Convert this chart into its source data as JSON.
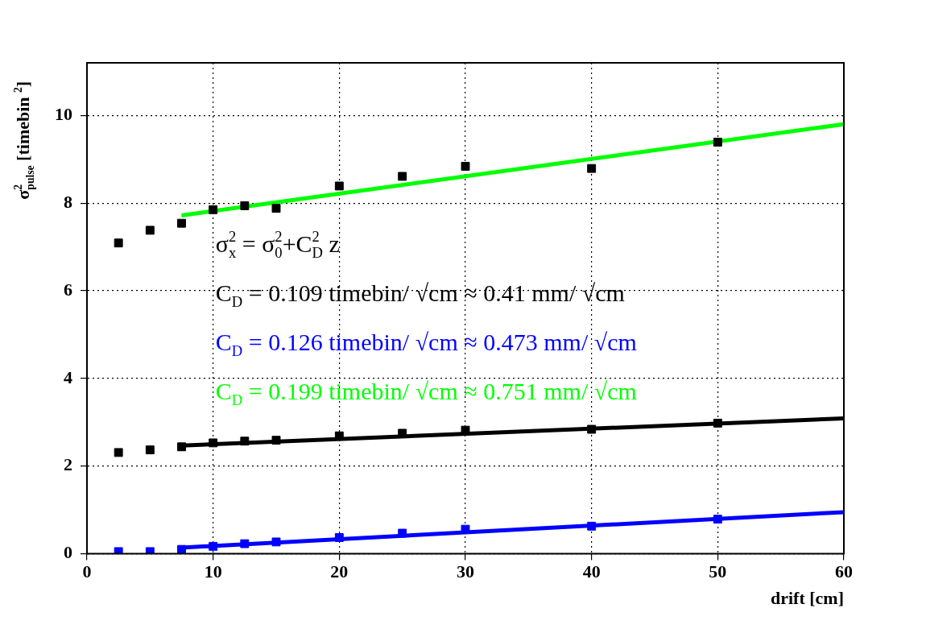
{
  "chart_data": {
    "type": "scatter",
    "xlabel": "drift [cm]",
    "ylabel": "σ$^{2}$$_{pulse}$ [timebin $^{2}$]",
    "xlim": [
      0,
      60
    ],
    "xticks": [
      0,
      10,
      20,
      30,
      40,
      50,
      60
    ],
    "ylim": [
      0,
      11.2
    ],
    "yticks": [
      0,
      2,
      4,
      6,
      8,
      10
    ],
    "grid": true,
    "legend": false,
    "annotations": [
      "σ$^{2}$$_{x}$ = σ$^{2}$$_{0}$+C$^{2}$$_{D}$ z",
      "C$_{D}$ = 0.109 timebin/ √cm ≈ 0.41 mm/ √cm",
      "C$_{D}$ = 0.126 timebin/ √cm ≈ 0.473 mm/ √cm",
      "C$_{D}$ = 0.199 timebin/ √cm ≈ 0.751 mm/ √cm"
    ],
    "series": [
      {
        "type": "scatter",
        "marker": "square",
        "color": "#000000",
        "x": [
          2.5,
          5,
          7.5,
          10,
          12.5,
          15,
          20,
          25,
          30,
          40,
          50
        ],
        "values": [
          7.09,
          7.38,
          7.54,
          7.85,
          7.94,
          7.88,
          8.39,
          8.61,
          8.84,
          8.79,
          9.39
        ]
      },
      {
        "type": "scatter",
        "marker": "square",
        "color": "#000000",
        "x": [
          2.5,
          5,
          7.5,
          10,
          12.5,
          15,
          20,
          25,
          30,
          40,
          50
        ],
        "values": [
          2.31,
          2.37,
          2.44,
          2.53,
          2.57,
          2.59,
          2.69,
          2.75,
          2.82,
          2.84,
          2.98
        ]
      },
      {
        "type": "scatter",
        "marker": "square",
        "color": "#0000ff",
        "x": [
          2.5,
          5,
          7.5,
          10,
          12.5,
          15,
          20,
          25,
          30,
          40,
          50
        ],
        "values": [
          0.05,
          0.05,
          0.1,
          0.17,
          0.23,
          0.27,
          0.37,
          0.47,
          0.56,
          0.63,
          0.79
        ]
      },
      {
        "type": "line",
        "marker": "none",
        "color": "#000000",
        "x": [
          7.5,
          60
        ],
        "values": [
          2.47,
          3.09
        ]
      },
      {
        "type": "line",
        "marker": "none",
        "color": "#0000ff",
        "x": [
          7.5,
          60
        ],
        "values": [
          0.14,
          0.95
        ]
      },
      {
        "type": "line",
        "marker": "none",
        "color": "#00ff00",
        "x": [
          7.5,
          60
        ],
        "values": [
          7.72,
          9.8
        ]
      }
    ]
  }
}
